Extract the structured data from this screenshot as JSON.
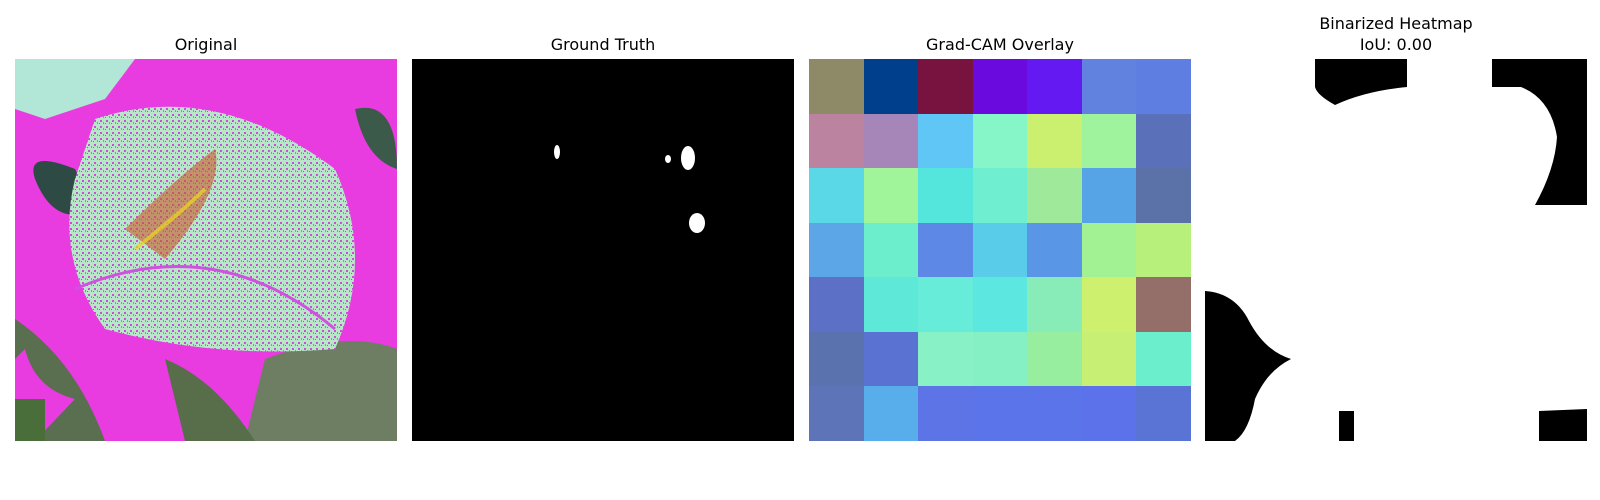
{
  "panels": [
    {
      "title": "Original"
    },
    {
      "title": "Ground Truth"
    },
    {
      "title": "Grad-CAM Overlay"
    },
    {
      "title_line1": "Binarized Heatmap",
      "title_line2": "IoU: 0.00"
    }
  ],
  "gradcam_cells": [
    [
      "#8e8a68",
      "#003f8c",
      "#78123e",
      "#6a0ade",
      "#6419f2",
      "#6282e0",
      "#5f7ee2"
    ],
    [
      "#bb83a0",
      "#a686b8",
      "#60c6f6",
      "#86f6c8",
      "#cbf070",
      "#9ef39c",
      "#5a70b8"
    ],
    [
      "#5ad8e8",
      "#a0f49a",
      "#54e6dc",
      "#70eed0",
      "#9eea9a",
      "#56a4e6",
      "#5a72a8"
    ],
    [
      "#5ca6e8",
      "#6ceecc",
      "#5e88e6",
      "#58cce8",
      "#5a96e6",
      "#a2f294",
      "#b8f07c"
    ],
    [
      "#5c70c6",
      "#5ee8d8",
      "#66ecd8",
      "#5ce8e0",
      "#88ecb8",
      "#cdf06e",
      "#946e68"
    ],
    [
      "#5a72ae",
      "#5a72d2",
      "#88f2c6",
      "#84f0c4",
      "#96ee9e",
      "#c6ef74",
      "#6aeecc"
    ],
    [
      "#5e74b8",
      "#58aeea",
      "#5c74e6",
      "#5c74ea",
      "#5c74ea",
      "#5c72ea",
      "#5a74d6"
    ]
  ]
}
